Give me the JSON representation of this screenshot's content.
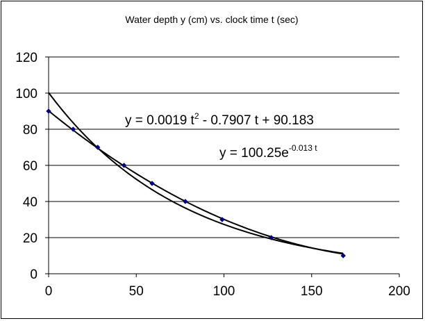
{
  "chart_data": {
    "type": "scatter",
    "title": "Water depth y (cm) vs. clock time t (sec)",
    "xlabel": "",
    "ylabel": "",
    "xlim": [
      0,
      200
    ],
    "ylim": [
      0,
      120
    ],
    "xticks": [
      "0",
      "50",
      "100",
      "150",
      "200"
    ],
    "yticks": [
      "0",
      "20",
      "40",
      "60",
      "80",
      "100",
      "120"
    ],
    "grid": "horizontal",
    "legend": "none",
    "series": [
      {
        "x": [
          0,
          14,
          28,
          43,
          59,
          78,
          99,
          127,
          168
        ],
        "y": [
          90,
          80,
          70,
          60,
          50,
          40,
          30,
          20,
          10
        ],
        "color": "#000080"
      }
    ],
    "trendlines": [
      {
        "type": "polynomial",
        "coefficients": [
          0.0019,
          -0.7907,
          90.183
        ],
        "x_range": [
          0,
          168
        ]
      },
      {
        "type": "exponential",
        "a": 100.25,
        "b": -0.013,
        "x_range": [
          0,
          168
        ]
      }
    ],
    "annotations": [
      {
        "id": "poly",
        "base": "y = 0.0019 t",
        "exp": "2",
        "rest": " - 0.7907 t + 90.183"
      },
      {
        "id": "expo",
        "base": "y = 100.25e",
        "exp": "-0.013 t"
      }
    ]
  }
}
